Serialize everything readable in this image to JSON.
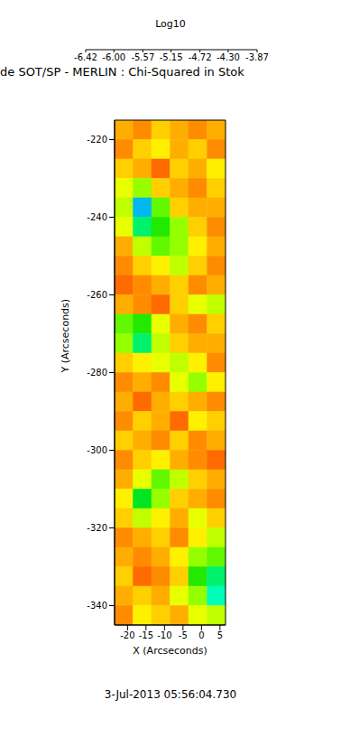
{
  "chart_data": {
    "type": "heatmap",
    "title": "de SOT/SP - MERLIN : Chi-Squared in Stok",
    "xlabel": "X (Arcseconds)",
    "ylabel": "Y (Arcseconds)",
    "annotations": [
      "3-Jul-2013 05:56:04.730"
    ],
    "xlim": [
      -23.5,
      6.5
    ],
    "xticks": [
      -20,
      -15,
      -10,
      -5,
      0,
      5
    ],
    "ylim": [
      -345,
      -215
    ],
    "yticks": [
      -220,
      -240,
      -260,
      -280,
      -300,
      -320,
      -340
    ],
    "grid": false,
    "x_edges": [
      -23.5,
      -18.5,
      -13.5,
      -8.5,
      -3.5,
      1.5,
      6.5
    ],
    "y_edges": [
      -215,
      -220,
      -225,
      -230,
      -235,
      -240,
      -245,
      -250,
      -255,
      -260,
      -265,
      -270,
      -275,
      -280,
      -285,
      -290,
      -295,
      -300,
      -305,
      -310,
      -315,
      -320,
      -325,
      -330,
      -335,
      -340,
      -345
    ],
    "cells": [
      [
        -5.9,
        -6.0,
        -5.8,
        -5.9,
        -6.0,
        -5.9
      ],
      [
        -6.0,
        -5.8,
        -5.7,
        -5.9,
        -5.8,
        -6.0
      ],
      [
        -5.8,
        -5.9,
        -6.1,
        -5.8,
        -5.9,
        -5.7
      ],
      [
        -5.6,
        -5.4,
        -5.8,
        -5.9,
        -6.0,
        -5.8
      ],
      [
        -5.5,
        -4.7,
        -5.3,
        -5.8,
        -5.9,
        -5.9
      ],
      [
        -5.6,
        -5.0,
        -5.2,
        -5.4,
        -5.8,
        -6.0
      ],
      [
        -5.9,
        -5.5,
        -5.3,
        -5.4,
        -5.7,
        -5.9
      ],
      [
        -6.0,
        -5.8,
        -5.7,
        -5.5,
        -5.8,
        -6.0
      ],
      [
        -6.1,
        -6.0,
        -5.9,
        -5.8,
        -6.0,
        -5.9
      ],
      [
        -5.9,
        -6.0,
        -6.1,
        -5.8,
        -5.6,
        -5.5
      ],
      [
        -5.3,
        -5.2,
        -5.6,
        -5.9,
        -6.0,
        -5.8
      ],
      [
        -5.4,
        -5.0,
        -5.5,
        -5.8,
        -5.9,
        -5.9
      ],
      [
        -5.8,
        -5.7,
        -5.6,
        -5.5,
        -5.7,
        -6.0
      ],
      [
        -6.0,
        -5.9,
        -6.0,
        -5.6,
        -5.4,
        -5.7
      ],
      [
        -5.9,
        -6.1,
        -5.9,
        -5.8,
        -5.9,
        -6.0
      ],
      [
        -6.0,
        -5.8,
        -5.9,
        -6.1,
        -5.7,
        -5.8
      ],
      [
        -5.8,
        -5.9,
        -6.0,
        -5.8,
        -6.0,
        -5.9
      ],
      [
        -6.0,
        -5.8,
        -5.7,
        -5.9,
        -6.0,
        -6.1
      ],
      [
        -5.9,
        -5.6,
        -5.3,
        -5.5,
        -5.8,
        -5.9
      ],
      [
        -5.7,
        -5.1,
        -5.4,
        -5.8,
        -5.9,
        -6.0
      ],
      [
        -5.8,
        -5.5,
        -5.7,
        -5.9,
        -5.6,
        -5.8
      ],
      [
        -6.0,
        -5.9,
        -5.8,
        -6.0,
        -5.7,
        -5.5
      ],
      [
        -5.9,
        -6.0,
        -5.9,
        -5.7,
        -5.4,
        -5.3
      ],
      [
        -5.8,
        -6.1,
        -6.0,
        -5.8,
        -5.2,
        -5.0
      ],
      [
        -5.9,
        -5.8,
        -5.9,
        -5.6,
        -5.4,
        -4.9
      ],
      [
        -6.0,
        -5.7,
        -5.8,
        -5.9,
        -5.6,
        -5.5
      ]
    ],
    "colorbar": {
      "label": "Log10",
      "range": [
        -6.42,
        -3.87
      ],
      "ticks": [
        -6.42,
        {
          "value": -6,
          "label": "-6.00"
        },
        -5.57,
        -5.15,
        -4.72,
        {
          "value": -4.3,
          "label": "-4.30"
        },
        -3.87
      ]
    }
  }
}
